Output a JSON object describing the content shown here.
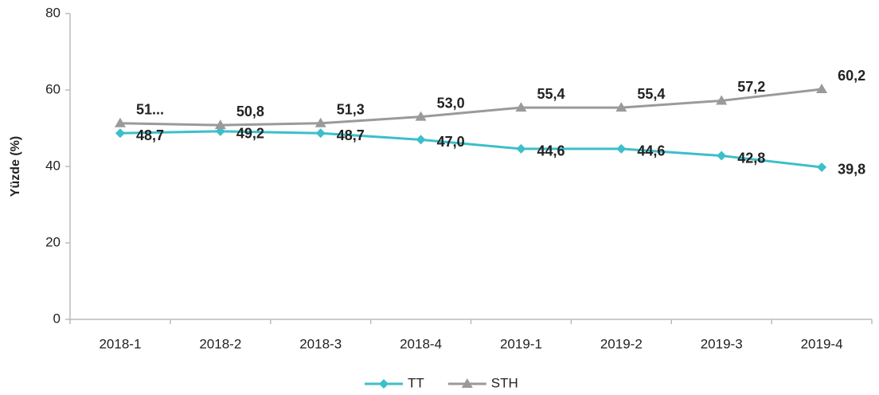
{
  "chart_data": {
    "type": "line",
    "y_label": "Yüzde (%)",
    "categories": [
      "2018-1",
      "2018-2",
      "2018-3",
      "2018-4",
      "2019-1",
      "2019-2",
      "2019-3",
      "2019-4"
    ],
    "series": [
      {
        "name": "TT",
        "color": "#3cbfc8",
        "marker": "diamond",
        "values": [
          48.7,
          49.2,
          48.7,
          47.0,
          44.6,
          44.6,
          42.8,
          39.8
        ],
        "value_labels": [
          "48,7",
          "49,2",
          "48,7",
          "47,0",
          "44,6",
          "44,6",
          "42,8",
          "39,8"
        ]
      },
      {
        "name": "STH",
        "color": "#9a9a9a",
        "marker": "triangle",
        "values": [
          51.3,
          50.8,
          51.3,
          53.0,
          55.4,
          55.4,
          57.2,
          60.2
        ],
        "value_labels": [
          "51...",
          "50,8",
          "51,3",
          "53,0",
          "55,4",
          "55,4",
          "57,2",
          "60,2"
        ]
      }
    ],
    "ylim": [
      0,
      80
    ],
    "yticks": [
      0,
      20,
      40,
      60,
      80
    ],
    "grid": false,
    "legend": "bottom"
  }
}
